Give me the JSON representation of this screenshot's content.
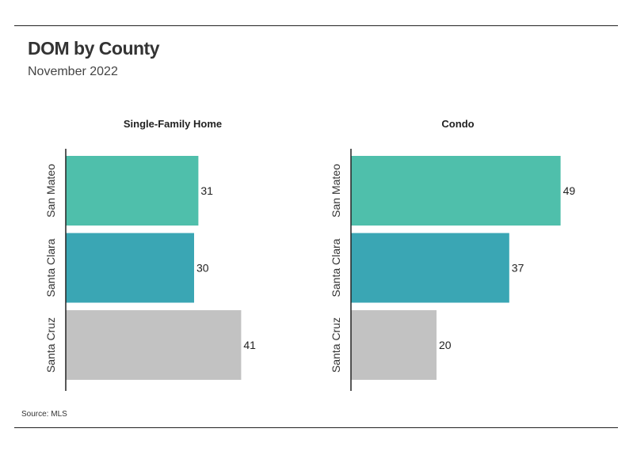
{
  "header": {
    "title": "DOM by County",
    "subtitle": "November 2022"
  },
  "footer": {
    "source": "Source:  MLS"
  },
  "colors": {
    "San Mateo": "#4fbfab",
    "Santa Clara": "#3aa6b4",
    "Santa Cruz": "#c2c2c2"
  },
  "chart_data": [
    {
      "type": "bar",
      "orientation": "horizontal",
      "title": "Single-Family Home",
      "categories": [
        "San Mateo",
        "Santa Clara",
        "Santa Cruz"
      ],
      "values": [
        31,
        30,
        41
      ],
      "xlim": [
        0,
        50
      ]
    },
    {
      "type": "bar",
      "orientation": "horizontal",
      "title": "Condo",
      "categories": [
        "San Mateo",
        "Santa Clara",
        "Santa Cruz"
      ],
      "values": [
        49,
        37,
        20
      ],
      "xlim": [
        0,
        50
      ]
    }
  ]
}
